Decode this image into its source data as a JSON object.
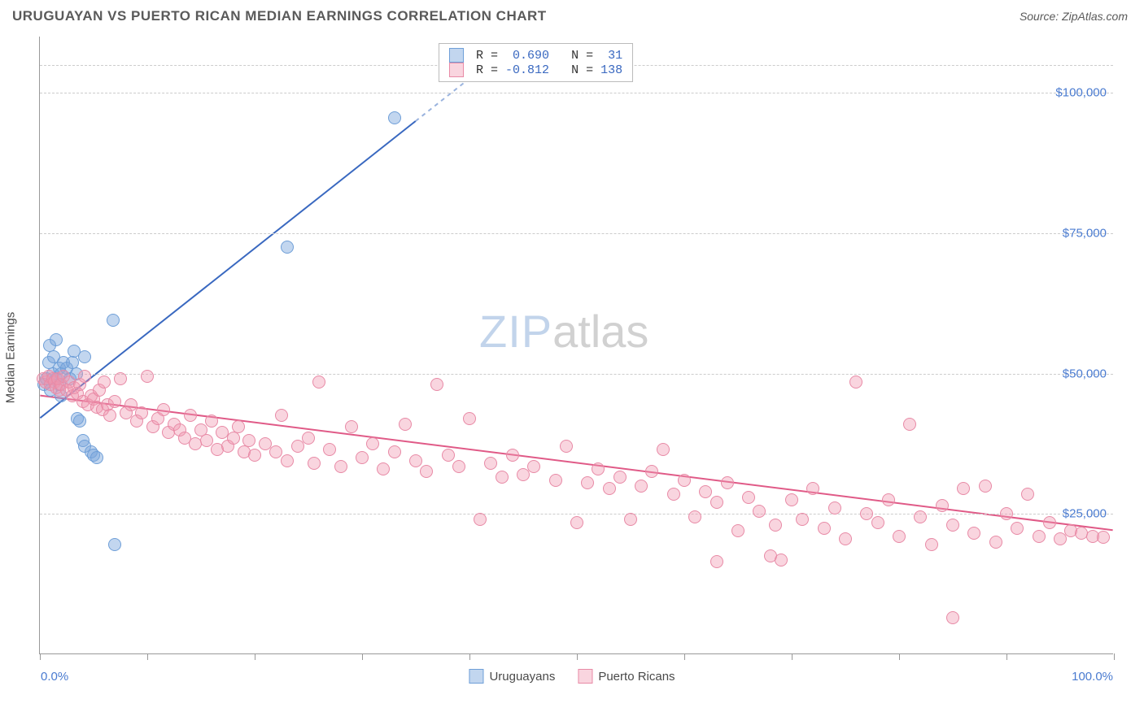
{
  "title": "URUGUAYAN VS PUERTO RICAN MEDIAN EARNINGS CORRELATION CHART",
  "source_prefix": "Source: ",
  "source": "ZipAtlas.com",
  "ylabel": "Median Earnings",
  "watermark_a": "ZIP",
  "watermark_b": "atlas",
  "chart": {
    "type": "scatter",
    "xlim": [
      0,
      100
    ],
    "ylim": [
      0,
      110000
    ],
    "x_ticks_pct": [
      0,
      10,
      20,
      30,
      40,
      50,
      60,
      70,
      80,
      90,
      100
    ],
    "x_left_label": "0.0%",
    "x_right_label": "100.0%",
    "y_gridlines": [
      25000,
      50000,
      75000,
      100000,
      105000
    ],
    "y_tick_labels": {
      "25000": "$25,000",
      "50000": "$50,000",
      "75000": "$75,000",
      "100000": "$100,000"
    },
    "background_color": "#ffffff",
    "grid_color": "#cccccc",
    "axis_color": "#999999",
    "marker_radius": 8,
    "series": [
      {
        "name": "Uruguayans",
        "color_fill": "rgba(120,165,220,0.45)",
        "color_stroke": "#6f9fd8",
        "trend_color": "#3968c0",
        "trend_dash_color": "#9ab3de",
        "R": "0.690",
        "N": "31",
        "trend": {
          "x1": 0,
          "y1": 42000,
          "x2": 41,
          "y2": 104000,
          "dash_from_x": 35
        },
        "points": [
          [
            0.4,
            48000
          ],
          [
            0.6,
            49000
          ],
          [
            0.8,
            52000
          ],
          [
            0.9,
            55000
          ],
          [
            1.0,
            47000
          ],
          [
            1.2,
            50000
          ],
          [
            1.3,
            53000
          ],
          [
            1.5,
            56000
          ],
          [
            1.5,
            49000
          ],
          [
            1.8,
            51000
          ],
          [
            1.8,
            48000
          ],
          [
            2.0,
            50000
          ],
          [
            2.0,
            46000
          ],
          [
            2.2,
            52000
          ],
          [
            2.5,
            51000
          ],
          [
            2.8,
            49000
          ],
          [
            3.0,
            52000
          ],
          [
            3.2,
            54000
          ],
          [
            3.4,
            50000
          ],
          [
            4.2,
            53000
          ],
          [
            3.5,
            42000
          ],
          [
            3.7,
            41500
          ],
          [
            4.0,
            38000
          ],
          [
            4.2,
            37000
          ],
          [
            4.8,
            36000
          ],
          [
            5.0,
            35500
          ],
          [
            5.3,
            35000
          ],
          [
            7.0,
            19500
          ],
          [
            6.8,
            59500
          ],
          [
            23.0,
            72500
          ],
          [
            33.0,
            95500
          ]
        ]
      },
      {
        "name": "Puerto Ricans",
        "color_fill": "rgba(240,150,175,0.40)",
        "color_stroke": "#e88aa6",
        "trend_color": "#e05a87",
        "R": "-0.812",
        "N": "138",
        "trend": {
          "x1": 0,
          "y1": 46000,
          "x2": 100,
          "y2": 22000
        },
        "points": [
          [
            0.3,
            49000
          ],
          [
            0.5,
            48500
          ],
          [
            0.8,
            49500
          ],
          [
            1.0,
            48000
          ],
          [
            1.2,
            49000
          ],
          [
            1.4,
            48500
          ],
          [
            1.5,
            47500
          ],
          [
            1.7,
            49000
          ],
          [
            1.8,
            47000
          ],
          [
            2.0,
            48000
          ],
          [
            2.2,
            49500
          ],
          [
            2.5,
            47000
          ],
          [
            2.7,
            48500
          ],
          [
            3.0,
            46000
          ],
          [
            3.2,
            47500
          ],
          [
            3.5,
            46500
          ],
          [
            3.7,
            48000
          ],
          [
            4.0,
            45000
          ],
          [
            4.2,
            49500
          ],
          [
            4.5,
            44500
          ],
          [
            4.8,
            46000
          ],
          [
            5.0,
            45500
          ],
          [
            5.3,
            44000
          ],
          [
            5.5,
            47000
          ],
          [
            5.8,
            43500
          ],
          [
            6.0,
            48500
          ],
          [
            6.3,
            44500
          ],
          [
            6.5,
            42500
          ],
          [
            7.0,
            45000
          ],
          [
            7.5,
            49000
          ],
          [
            8.0,
            43000
          ],
          [
            8.5,
            44500
          ],
          [
            9.0,
            41500
          ],
          [
            9.5,
            43000
          ],
          [
            10.0,
            49500
          ],
          [
            10.5,
            40500
          ],
          [
            11.0,
            42000
          ],
          [
            11.5,
            43500
          ],
          [
            12.0,
            39500
          ],
          [
            12.5,
            41000
          ],
          [
            13.0,
            40000
          ],
          [
            13.5,
            38500
          ],
          [
            14.0,
            42500
          ],
          [
            14.5,
            37500
          ],
          [
            15.0,
            40000
          ],
          [
            15.5,
            38000
          ],
          [
            16.0,
            41500
          ],
          [
            16.5,
            36500
          ],
          [
            17.0,
            39500
          ],
          [
            17.5,
            37000
          ],
          [
            18.0,
            38500
          ],
          [
            18.5,
            40500
          ],
          [
            19.0,
            36000
          ],
          [
            19.5,
            38000
          ],
          [
            20.0,
            35500
          ],
          [
            21.0,
            37500
          ],
          [
            22.0,
            36000
          ],
          [
            22.5,
            42500
          ],
          [
            23.0,
            34500
          ],
          [
            24.0,
            37000
          ],
          [
            25.0,
            38500
          ],
          [
            25.5,
            34000
          ],
          [
            26.0,
            48500
          ],
          [
            27.0,
            36500
          ],
          [
            28.0,
            33500
          ],
          [
            29.0,
            40500
          ],
          [
            30.0,
            35000
          ],
          [
            31.0,
            37500
          ],
          [
            32.0,
            33000
          ],
          [
            33.0,
            36000
          ],
          [
            34.0,
            41000
          ],
          [
            35.0,
            34500
          ],
          [
            36.0,
            32500
          ],
          [
            37.0,
            48000
          ],
          [
            38.0,
            35500
          ],
          [
            39.0,
            33500
          ],
          [
            40.0,
            42000
          ],
          [
            41.0,
            24000
          ],
          [
            42.0,
            34000
          ],
          [
            43.0,
            31500
          ],
          [
            44.0,
            35500
          ],
          [
            45.0,
            32000
          ],
          [
            46.0,
            33500
          ],
          [
            48.0,
            31000
          ],
          [
            49.0,
            37000
          ],
          [
            50.0,
            23500
          ],
          [
            51.0,
            30500
          ],
          [
            52.0,
            33000
          ],
          [
            53.0,
            29500
          ],
          [
            54.0,
            31500
          ],
          [
            55.0,
            24000
          ],
          [
            56.0,
            30000
          ],
          [
            57.0,
            32500
          ],
          [
            58.0,
            36500
          ],
          [
            59.0,
            28500
          ],
          [
            60.0,
            31000
          ],
          [
            61.0,
            24500
          ],
          [
            62.0,
            29000
          ],
          [
            63.0,
            27000
          ],
          [
            64.0,
            30500
          ],
          [
            65.0,
            22000
          ],
          [
            63.0,
            16500
          ],
          [
            66.0,
            28000
          ],
          [
            67.0,
            25500
          ],
          [
            68.0,
            17500
          ],
          [
            68.5,
            23000
          ],
          [
            69.0,
            16800
          ],
          [
            70.0,
            27500
          ],
          [
            71.0,
            24000
          ],
          [
            72.0,
            29500
          ],
          [
            73.0,
            22500
          ],
          [
            74.0,
            26000
          ],
          [
            75.0,
            20500
          ],
          [
            76.0,
            48500
          ],
          [
            77.0,
            25000
          ],
          [
            78.0,
            23500
          ],
          [
            79.0,
            27500
          ],
          [
            80.0,
            21000
          ],
          [
            81.0,
            41000
          ],
          [
            82.0,
            24500
          ],
          [
            83.0,
            19500
          ],
          [
            84.0,
            26500
          ],
          [
            85.0,
            23000
          ],
          [
            85.0,
            6500
          ],
          [
            86.0,
            29500
          ],
          [
            87.0,
            21500
          ],
          [
            88.0,
            30000
          ],
          [
            89.0,
            20000
          ],
          [
            90.0,
            25000
          ],
          [
            91.0,
            22500
          ],
          [
            92.0,
            28500
          ],
          [
            93.0,
            21000
          ],
          [
            94.0,
            23500
          ],
          [
            95.0,
            20500
          ],
          [
            96.0,
            22000
          ],
          [
            97.0,
            21500
          ],
          [
            98.0,
            21000
          ],
          [
            99.0,
            20800
          ]
        ]
      }
    ]
  },
  "legend": {
    "s1": "Uruguayans",
    "s2": "Puerto Ricans"
  },
  "stats_labels": {
    "R": "R =",
    "N": "N ="
  }
}
